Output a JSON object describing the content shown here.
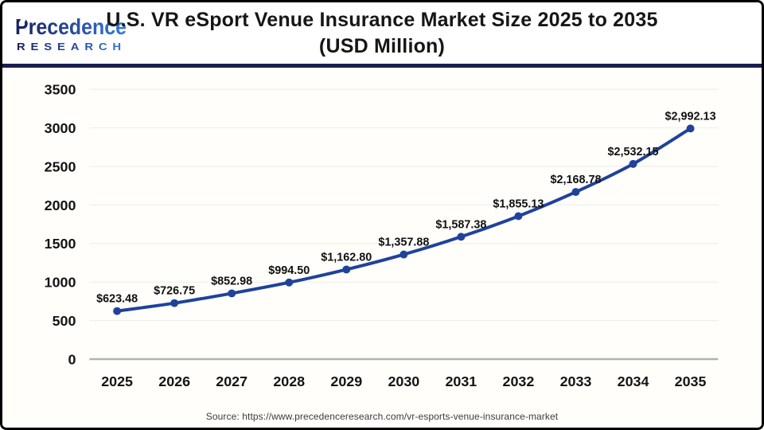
{
  "header": {
    "logo": {
      "brand_line1": "Precedence",
      "brand_line2": "RESEARCH"
    },
    "title_line1": "U.S. VR eSport Venue Insurance Market Size 2025 to 2035",
    "title_line2": "(USD Million)"
  },
  "footer": {
    "source": "Source: https://www.precedenceresearch.com/vr-esports-venue-insurance-market"
  },
  "chart_data": {
    "type": "line",
    "title": "U.S. VR eSport Venue Insurance Market Size 2025 to 2035 (USD Million)",
    "xlabel": "",
    "ylabel": "",
    "categories": [
      "2025",
      "2026",
      "2027",
      "2028",
      "2029",
      "2030",
      "2031",
      "2032",
      "2033",
      "2034",
      "2035"
    ],
    "values": [
      623.48,
      726.75,
      852.98,
      994.5,
      1162.8,
      1357.88,
      1587.38,
      1855.13,
      2168.78,
      2532.15,
      2992.13
    ],
    "point_labels": [
      "$623.48",
      "$726.75",
      "$852.98",
      "$994.50",
      "$1,162.80",
      "$1,357.88",
      "$1,587.38",
      "$1,855.13",
      "$2,168.78",
      "$2,532.15",
      "$2,992.13"
    ],
    "ylim": [
      0,
      3500
    ],
    "yticks": [
      0,
      500,
      1000,
      1500,
      2000,
      2500,
      3000,
      3500
    ],
    "grid": true,
    "legend": "none",
    "colors": {
      "line": "#1f429b",
      "marker": "#1f429b",
      "gridline": "#ececec",
      "zero_axis": "#b3b3b3",
      "divider_navy": "#1a1d4f",
      "logo_dark": "#1b1f5e",
      "logo_light": "#3379d9",
      "title_text": "#161616"
    }
  }
}
